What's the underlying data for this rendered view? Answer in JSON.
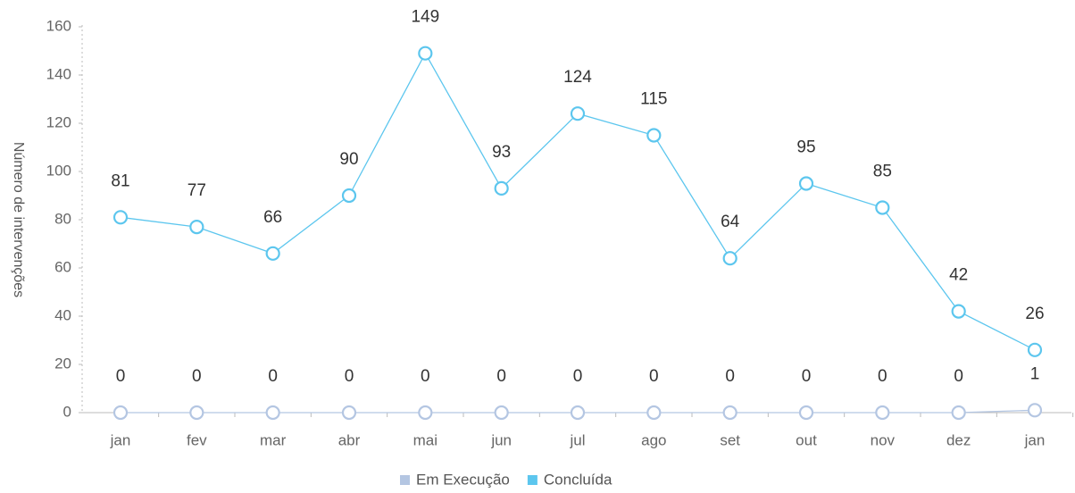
{
  "chart_data": {
    "type": "line",
    "y_axis_label": "Número de intervenções",
    "categories": [
      "jan",
      "fev",
      "mar",
      "abr",
      "mai",
      "jun",
      "jul",
      "ago",
      "set",
      "out",
      "nov",
      "dez",
      "jan"
    ],
    "series": [
      {
        "name": "Em Execução",
        "color": "#b4c6e2",
        "values": [
          0,
          0,
          0,
          0,
          0,
          0,
          0,
          0,
          0,
          0,
          0,
          0,
          1
        ]
      },
      {
        "name": "Concluída",
        "color": "#5cc6ee",
        "values": [
          81,
          77,
          66,
          90,
          149,
          93,
          124,
          115,
          64,
          95,
          85,
          42,
          26
        ]
      }
    ],
    "ylim": [
      0,
      160
    ],
    "yticks": [
      0,
      20,
      40,
      60,
      80,
      100,
      120,
      140,
      160
    ],
    "data_labels": true,
    "legend": "bottom"
  }
}
